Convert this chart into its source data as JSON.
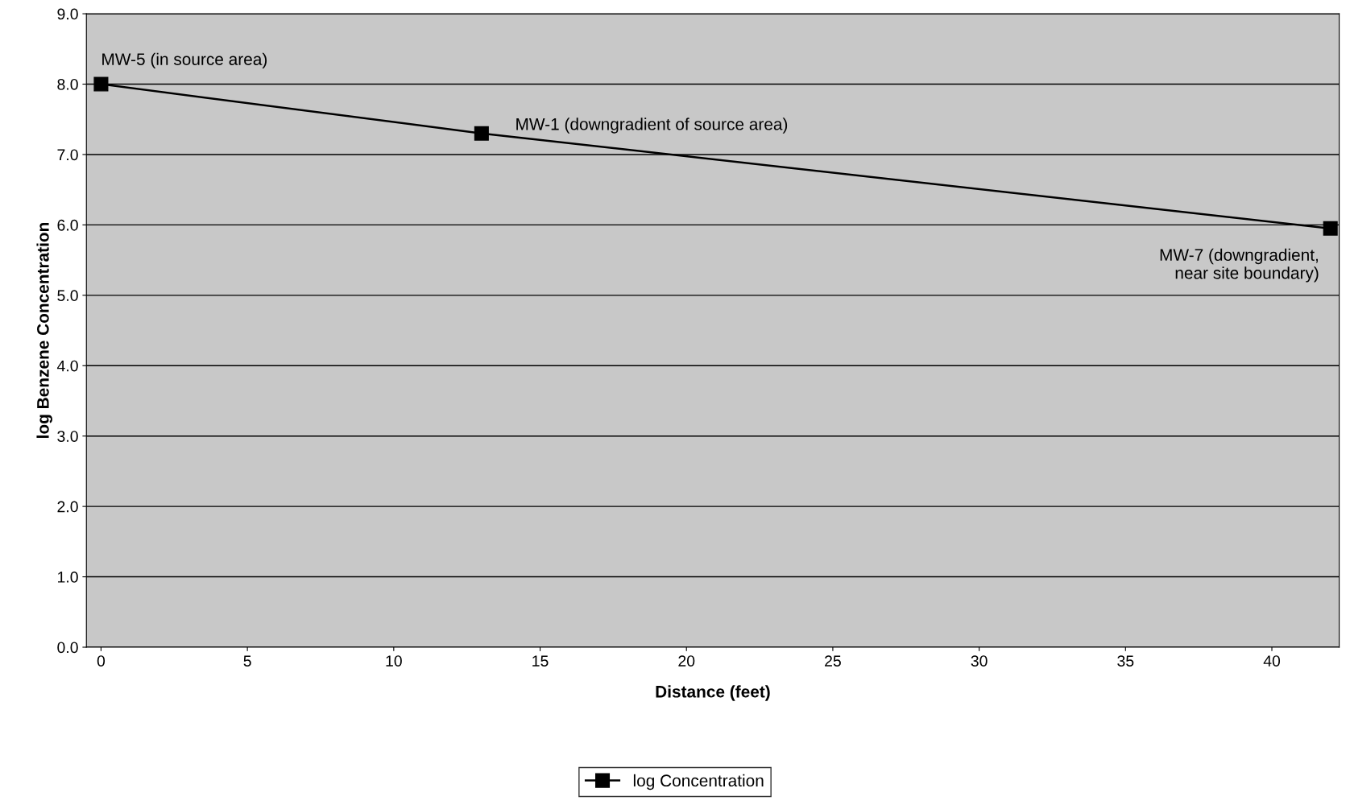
{
  "chart_data": {
    "type": "line",
    "xlabel": "Distance (feet)",
    "ylabel": "log Benzene Concentration",
    "x": [
      0,
      13,
      42
    ],
    "series": [
      {
        "name": "log Concentration",
        "color": "#000000",
        "values": [
          8.0,
          7.3,
          5.95
        ]
      }
    ],
    "xlim": [
      -0.5,
      42.3
    ],
    "xticks": [
      0,
      5,
      10,
      15,
      20,
      25,
      30,
      35,
      40
    ],
    "ylim": [
      0,
      9
    ],
    "yticks": [
      {
        "value": 0,
        "label": "0.0"
      },
      {
        "value": 1,
        "label": "1.0"
      },
      {
        "value": 2,
        "label": "2.0"
      },
      {
        "value": 3,
        "label": "3.0"
      },
      {
        "value": 4,
        "label": "4.0"
      },
      {
        "value": 5,
        "label": "5.0"
      },
      {
        "value": 6,
        "label": "6.0"
      },
      {
        "value": 7,
        "label": "7.0"
      },
      {
        "value": 8,
        "label": "8.0"
      },
      {
        "value": 9,
        "label": "9.0"
      }
    ],
    "annotations": [
      {
        "text": "MW-5 (in source area)",
        "x": 0,
        "y": 8.0
      },
      {
        "text": "MW-1 (downgradient of source area)",
        "x": 13,
        "y": 7.3
      },
      {
        "text": "MW-7 (downgradient,\nnear site boundary)",
        "x": 42,
        "y": 5.95
      }
    ],
    "grid": "y",
    "legend": "bottom",
    "marker": "square",
    "line_style": "solid"
  }
}
